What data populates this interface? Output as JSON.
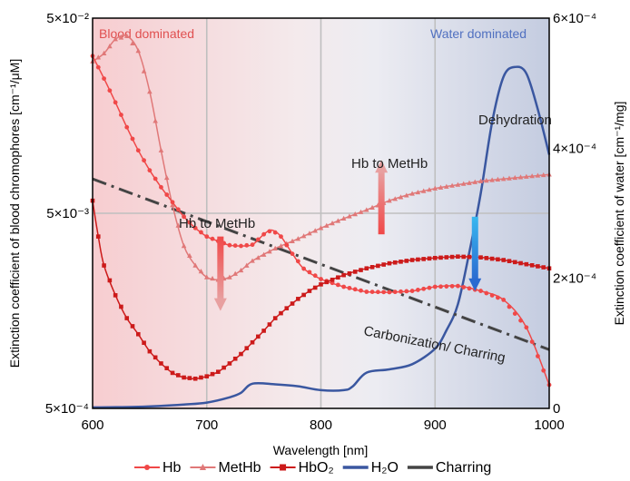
{
  "chart_data": {
    "type": "line",
    "xlabel": "Wavelength [nm]",
    "ylabel_left": "Extinction coefficient of blood chromophores [cm⁻¹/μM]",
    "ylabel_right": "Extinction coefficient of water [cm⁻¹/mg]",
    "xlim": [
      600,
      1000
    ],
    "x_ticks": [
      600,
      700,
      800,
      900,
      1000
    ],
    "left_scale": "log",
    "ylim_left": [
      0.0005,
      0.05
    ],
    "left_ticks": [
      {
        "value": 0.0005,
        "label": "5×10⁻⁴"
      },
      {
        "value": 0.005,
        "label": "5×10⁻³"
      },
      {
        "value": 0.05,
        "label": "5×10⁻²"
      }
    ],
    "ylim_right": [
      0,
      0.0006
    ],
    "right_ticks": [
      {
        "value": 0,
        "label": "0"
      },
      {
        "value": 0.0002,
        "label": "2×10⁻⁴"
      },
      {
        "value": 0.0004,
        "label": "4×10⁻⁴"
      },
      {
        "value": 0.0006,
        "label": "6×10⁻⁴"
      }
    ],
    "grid": true,
    "series": [
      {
        "name": "Hb",
        "axis": "left",
        "color": "#f04848",
        "marker": "circle",
        "dash": false,
        "points": [
          [
            600,
            0.032
          ],
          [
            610,
            0.0245
          ],
          [
            620,
            0.0185
          ],
          [
            630,
            0.0138
          ],
          [
            640,
            0.0105
          ],
          [
            650,
            0.0083
          ],
          [
            660,
            0.0068
          ],
          [
            670,
            0.0057
          ],
          [
            680,
            0.0048
          ],
          [
            690,
            0.0042
          ],
          [
            700,
            0.0038
          ],
          [
            710,
            0.0036
          ],
          [
            720,
            0.00343
          ],
          [
            730,
            0.0034
          ],
          [
            740,
            0.00345
          ],
          [
            750,
            0.0039
          ],
          [
            757,
            0.0041
          ],
          [
            765,
            0.0038
          ],
          [
            775,
            0.0031
          ],
          [
            785,
            0.0026
          ],
          [
            800,
            0.0023
          ],
          [
            820,
            0.0021
          ],
          [
            840,
            0.00198
          ],
          [
            860,
            0.00197
          ],
          [
            880,
            0.002
          ],
          [
            900,
            0.0021
          ],
          [
            920,
            0.00212
          ],
          [
            940,
            0.002
          ],
          [
            960,
            0.0018
          ],
          [
            980,
            0.0013
          ],
          [
            1000,
            0.00066
          ]
        ]
      },
      {
        "name": "MetHb",
        "axis": "left",
        "color": "#e07878",
        "marker": "triangle",
        "dash": false,
        "points": [
          [
            600,
            0.03
          ],
          [
            610,
            0.033
          ],
          [
            620,
            0.039
          ],
          [
            630,
            0.0405
          ],
          [
            640,
            0.034
          ],
          [
            650,
            0.021
          ],
          [
            660,
            0.0105
          ],
          [
            670,
            0.0055
          ],
          [
            680,
            0.0034
          ],
          [
            690,
            0.0027
          ],
          [
            700,
            0.00235
          ],
          [
            710,
            0.00228
          ],
          [
            720,
            0.00235
          ],
          [
            730,
            0.00255
          ],
          [
            740,
            0.00285
          ],
          [
            760,
            0.0033
          ],
          [
            780,
            0.0037
          ],
          [
            800,
            0.0042
          ],
          [
            820,
            0.0047
          ],
          [
            840,
            0.0052
          ],
          [
            860,
            0.0058
          ],
          [
            880,
            0.0063
          ],
          [
            900,
            0.0067
          ],
          [
            920,
            0.007
          ],
          [
            940,
            0.0073
          ],
          [
            960,
            0.0075
          ],
          [
            980,
            0.0077
          ],
          [
            1000,
            0.0079
          ]
        ]
      },
      {
        "name": "HbO₂",
        "axis": "left",
        "color": "#cc1a1a",
        "marker": "square",
        "dash": false,
        "points": [
          [
            600,
            0.0058
          ],
          [
            605,
            0.0038
          ],
          [
            610,
            0.0027
          ],
          [
            620,
            0.0019
          ],
          [
            630,
            0.00145
          ],
          [
            640,
            0.0012
          ],
          [
            650,
            0.00098
          ],
          [
            660,
            0.00085
          ],
          [
            670,
            0.00076
          ],
          [
            680,
            0.00072
          ],
          [
            690,
            0.00071
          ],
          [
            700,
            0.00073
          ],
          [
            710,
            0.00077
          ],
          [
            720,
            0.00085
          ],
          [
            730,
            0.00095
          ],
          [
            740,
            0.00109
          ],
          [
            750,
            0.00125
          ],
          [
            760,
            0.00145
          ],
          [
            770,
            0.00163
          ],
          [
            780,
            0.00182
          ],
          [
            790,
            0.002
          ],
          [
            800,
            0.00216
          ],
          [
            820,
            0.00241
          ],
          [
            840,
            0.00261
          ],
          [
            860,
            0.00277
          ],
          [
            880,
            0.00288
          ],
          [
            900,
            0.00295
          ],
          [
            920,
            0.003
          ],
          [
            940,
            0.00297
          ],
          [
            960,
            0.00288
          ],
          [
            980,
            0.00274
          ],
          [
            1000,
            0.00261
          ]
        ]
      },
      {
        "name": "H₂O",
        "axis": "right",
        "color": "#3a57a0",
        "marker": "none",
        "dash": false,
        "points": [
          [
            600,
            1.5e-06
          ],
          [
            640,
            2.5e-06
          ],
          [
            680,
            6e-06
          ],
          [
            700,
            9e-06
          ],
          [
            720,
            1.7e-05
          ],
          [
            730,
            2.4e-05
          ],
          [
            740,
            3.8e-05
          ],
          [
            760,
            3.7e-05
          ],
          [
            780,
            3.4e-05
          ],
          [
            800,
            2.8e-05
          ],
          [
            820,
            2.8e-05
          ],
          [
            828,
            3.4e-05
          ],
          [
            840,
            5.5e-05
          ],
          [
            860,
            6e-05
          ],
          [
            880,
            6.8e-05
          ],
          [
            900,
            9.2e-05
          ],
          [
            910,
            0.00012
          ],
          [
            920,
            0.00016
          ],
          [
            930,
            0.00024
          ],
          [
            940,
            0.00033
          ],
          [
            950,
            0.00044
          ],
          [
            960,
            0.00051
          ],
          [
            970,
            0.000525
          ],
          [
            980,
            0.000515
          ],
          [
            990,
            0.00046
          ],
          [
            1000,
            0.00039
          ]
        ]
      },
      {
        "name": "Charring",
        "axis": "left",
        "color": "#444444",
        "marker": "none",
        "dash": true,
        "points": [
          [
            600,
            0.0075
          ],
          [
            1000,
            0.001
          ]
        ]
      }
    ],
    "annotations": [
      {
        "text": "Blood dominated",
        "color": "#e05050"
      },
      {
        "text": "Water dominated",
        "color": "#5070c0"
      },
      {
        "text": "Hb to MetHb",
        "x": 712,
        "y": 0.0038,
        "direction": "down",
        "color": "#e87070"
      },
      {
        "text": "Hb to MetHb",
        "x": 853,
        "y": 0.0039,
        "direction": "up",
        "color": "#e87070"
      },
      {
        "text": "Dehydration",
        "x": 935,
        "y": 0.0048,
        "direction": "down",
        "color": "#3aa0e0"
      },
      {
        "text": "Carbonization/ Charring",
        "color": "#222222"
      }
    ],
    "legend": {
      "position": "bottom",
      "items": [
        "Hb",
        "MetHb",
        "HbO₂",
        "H₂O",
        "Charring"
      ]
    }
  }
}
